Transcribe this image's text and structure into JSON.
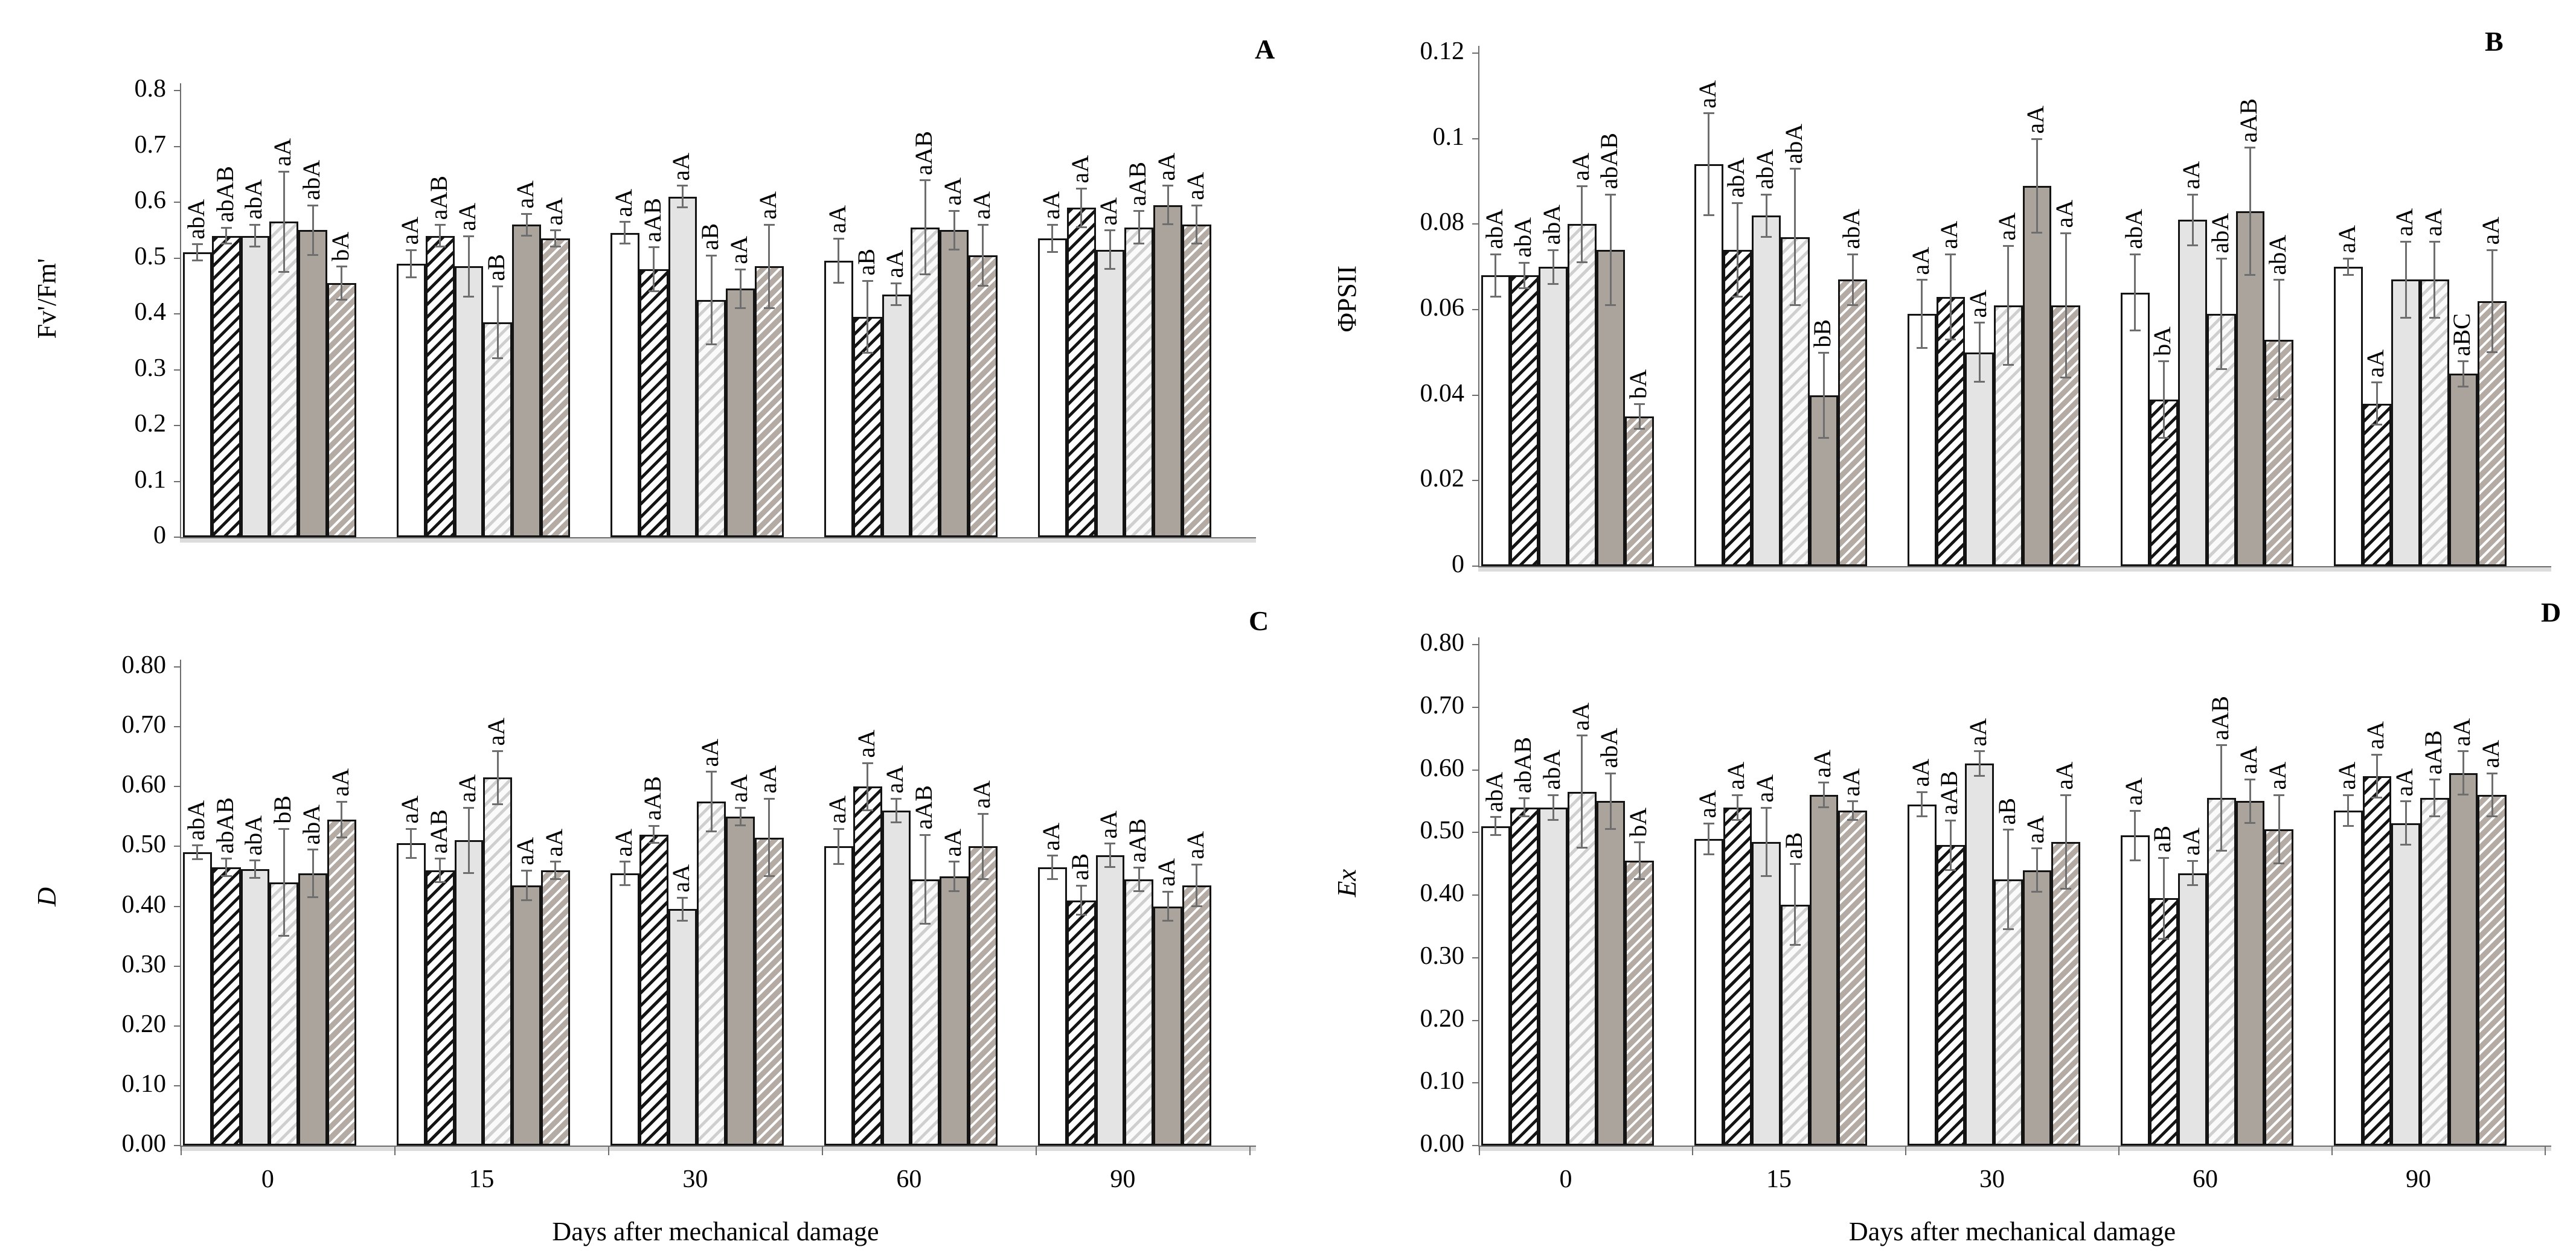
{
  "figure_title": "",
  "bar_styles": [
    {
      "name": "treatment-1",
      "fill": "solid-white",
      "color": "#ffffff"
    },
    {
      "name": "treatment-2",
      "fill": "black-diagonal-hatch",
      "color": "#141414"
    },
    {
      "name": "treatment-3",
      "fill": "solid-light-gray",
      "color": "#e4e4e4"
    },
    {
      "name": "treatment-4",
      "fill": "light-gray-diagonal-hatch",
      "color": "#cfcfcf"
    },
    {
      "name": "treatment-5",
      "fill": "solid-gray",
      "color": "#aba49c"
    },
    {
      "name": "treatment-6",
      "fill": "gray-white-diagonal-hatch",
      "color": "#b3aba4"
    }
  ],
  "chart_data": [
    {
      "type": "bar",
      "panel_label": "A",
      "ylabel": "Fv'/Fm'",
      "xlabel": "",
      "ymin": 0,
      "ymax": 0.8,
      "ytick_labels": [
        "0",
        "0.1",
        "0.2",
        "0.3",
        "0.4",
        "0.5",
        "0.6",
        "0.7",
        "0.8"
      ],
      "categories": [
        "0",
        "15",
        "30",
        "60",
        "90"
      ],
      "x_labels_visible": false,
      "grid": false,
      "legend": "none",
      "groups": [
        {
          "category": "0",
          "bars": [
            {
              "value": 0.51,
              "error": 0.015,
              "label": "abA"
            },
            {
              "value": 0.54,
              "error": 0.015,
              "label": "abAB"
            },
            {
              "value": 0.54,
              "error": 0.02,
              "label": "abA"
            },
            {
              "value": 0.565,
              "error": 0.09,
              "label": "aA"
            },
            {
              "value": 0.55,
              "error": 0.045,
              "label": "abA"
            },
            {
              "value": 0.455,
              "error": 0.03,
              "label": "bA"
            }
          ]
        },
        {
          "category": "15",
          "bars": [
            {
              "value": 0.49,
              "error": 0.025,
              "label": "aA"
            },
            {
              "value": 0.54,
              "error": 0.02,
              "label": "aAB"
            },
            {
              "value": 0.485,
              "error": 0.055,
              "label": "aA"
            },
            {
              "value": 0.385,
              "error": 0.065,
              "label": "aB"
            },
            {
              "value": 0.56,
              "error": 0.02,
              "label": "aA"
            },
            {
              "value": 0.535,
              "error": 0.015,
              "label": "aA"
            }
          ]
        },
        {
          "category": "30",
          "bars": [
            {
              "value": 0.545,
              "error": 0.02,
              "label": "aA"
            },
            {
              "value": 0.48,
              "error": 0.04,
              "label": "aAB"
            },
            {
              "value": 0.61,
              "error": 0.02,
              "label": "aA"
            },
            {
              "value": 0.425,
              "error": 0.08,
              "label": "aB"
            },
            {
              "value": 0.445,
              "error": 0.035,
              "label": "aA"
            },
            {
              "value": 0.485,
              "error": 0.075,
              "label": "aA"
            }
          ]
        },
        {
          "category": "60",
          "bars": [
            {
              "value": 0.495,
              "error": 0.04,
              "label": "aA"
            },
            {
              "value": 0.395,
              "error": 0.065,
              "label": "aB"
            },
            {
              "value": 0.435,
              "error": 0.02,
              "label": "aA"
            },
            {
              "value": 0.555,
              "error": 0.085,
              "label": "aAB"
            },
            {
              "value": 0.55,
              "error": 0.035,
              "label": "aA"
            },
            {
              "value": 0.505,
              "error": 0.055,
              "label": "aA"
            }
          ]
        },
        {
          "category": "90",
          "bars": [
            {
              "value": 0.535,
              "error": 0.025,
              "label": "aA"
            },
            {
              "value": 0.59,
              "error": 0.035,
              "label": "aA"
            },
            {
              "value": 0.515,
              "error": 0.035,
              "label": "aA"
            },
            {
              "value": 0.555,
              "error": 0.03,
              "label": "aAB"
            },
            {
              "value": 0.595,
              "error": 0.035,
              "label": "aA"
            },
            {
              "value": 0.56,
              "error": 0.035,
              "label": "aA"
            }
          ]
        }
      ]
    },
    {
      "type": "bar",
      "panel_label": "B",
      "ylabel": "ΦPSII",
      "xlabel": "",
      "ymin": 0,
      "ymax": 0.12,
      "ytick_labels": [
        "0",
        "0.02",
        "0.04",
        "0.06",
        "0.08",
        "0.1",
        "0.12"
      ],
      "categories": [
        "0",
        "15",
        "30",
        "60",
        "90"
      ],
      "x_labels_visible": false,
      "grid": false,
      "legend": "none",
      "groups": [
        {
          "category": "0",
          "bars": [
            {
              "value": 0.068,
              "error": 0.005,
              "label": "abA"
            },
            {
              "value": 0.068,
              "error": 0.003,
              "label": "abA"
            },
            {
              "value": 0.07,
              "error": 0.004,
              "label": "abA"
            },
            {
              "value": 0.08,
              "error": 0.009,
              "label": "aA"
            },
            {
              "value": 0.074,
              "error": 0.013,
              "label": "abAB"
            },
            {
              "value": 0.035,
              "error": 0.003,
              "label": "bA"
            }
          ]
        },
        {
          "category": "15",
          "bars": [
            {
              "value": 0.094,
              "error": 0.012,
              "label": "aA"
            },
            {
              "value": 0.074,
              "error": 0.011,
              "label": "abA"
            },
            {
              "value": 0.082,
              "error": 0.005,
              "label": "abA"
            },
            {
              "value": 0.077,
              "error": 0.016,
              "label": "abA"
            },
            {
              "value": 0.04,
              "error": 0.01,
              "label": "bB"
            },
            {
              "value": 0.067,
              "error": 0.006,
              "label": "abA"
            }
          ]
        },
        {
          "category": "30",
          "bars": [
            {
              "value": 0.059,
              "error": 0.008,
              "label": "aA"
            },
            {
              "value": 0.063,
              "error": 0.01,
              "label": "aA"
            },
            {
              "value": 0.05,
              "error": 0.007,
              "label": "aA"
            },
            {
              "value": 0.061,
              "error": 0.014,
              "label": "aA"
            },
            {
              "value": 0.089,
              "error": 0.011,
              "label": "aA"
            },
            {
              "value": 0.061,
              "error": 0.017,
              "label": "aA"
            }
          ]
        },
        {
          "category": "60",
          "bars": [
            {
              "value": 0.064,
              "error": 0.009,
              "label": "abA"
            },
            {
              "value": 0.039,
              "error": 0.009,
              "label": "bA"
            },
            {
              "value": 0.081,
              "error": 0.006,
              "label": "aA"
            },
            {
              "value": 0.059,
              "error": 0.013,
              "label": "abA"
            },
            {
              "value": 0.083,
              "error": 0.015,
              "label": "aAB"
            },
            {
              "value": 0.053,
              "error": 0.014,
              "label": "abA"
            }
          ]
        },
        {
          "category": "90",
          "bars": [
            {
              "value": 0.07,
              "error": 0.002,
              "label": "aA"
            },
            {
              "value": 0.038,
              "error": 0.005,
              "label": "aA"
            },
            {
              "value": 0.067,
              "error": 0.009,
              "label": "aA"
            },
            {
              "value": 0.067,
              "error": 0.009,
              "label": "aA"
            },
            {
              "value": 0.045,
              "error": 0.003,
              "label": "aBC"
            },
            {
              "value": 0.062,
              "error": 0.012,
              "label": "aA"
            }
          ]
        }
      ]
    },
    {
      "type": "bar",
      "panel_label": "C",
      "ylabel": "D",
      "xlabel": "Days after mechanical damage",
      "ymin": 0,
      "ymax": 0.8,
      "ytick_labels": [
        "0.00",
        "0.10",
        "0.20",
        "0.30",
        "0.40",
        "0.50",
        "0.60",
        "0.70",
        "0.80"
      ],
      "categories": [
        "0",
        "15",
        "30",
        "60",
        "90"
      ],
      "x_labels_visible": true,
      "grid": false,
      "legend": "none",
      "groups": [
        {
          "category": "0",
          "bars": [
            {
              "value": 0.49,
              "error": 0.012,
              "label": "abA"
            },
            {
              "value": 0.465,
              "error": 0.015,
              "label": "abAB"
            },
            {
              "value": 0.462,
              "error": 0.015,
              "label": "abA"
            },
            {
              "value": 0.44,
              "error": 0.09,
              "label": "bB"
            },
            {
              "value": 0.455,
              "error": 0.04,
              "label": "abA"
            },
            {
              "value": 0.545,
              "error": 0.03,
              "label": "aA"
            }
          ]
        },
        {
          "category": "15",
          "bars": [
            {
              "value": 0.505,
              "error": 0.025,
              "label": "aA"
            },
            {
              "value": 0.46,
              "error": 0.02,
              "label": "aAB"
            },
            {
              "value": 0.51,
              "error": 0.055,
              "label": "aA"
            },
            {
              "value": 0.615,
              "error": 0.045,
              "label": "aA"
            },
            {
              "value": 0.435,
              "error": 0.025,
              "label": "aA"
            },
            {
              "value": 0.46,
              "error": 0.015,
              "label": "aA"
            }
          ]
        },
        {
          "category": "30",
          "bars": [
            {
              "value": 0.455,
              "error": 0.02,
              "label": "aA"
            },
            {
              "value": 0.52,
              "error": 0.015,
              "label": "aAB"
            },
            {
              "value": 0.395,
              "error": 0.02,
              "label": "aA"
            },
            {
              "value": 0.575,
              "error": 0.05,
              "label": "aA"
            },
            {
              "value": 0.55,
              "error": 0.015,
              "label": "aA"
            },
            {
              "value": 0.515,
              "error": 0.065,
              "label": "aA"
            }
          ]
        },
        {
          "category": "60",
          "bars": [
            {
              "value": 0.5,
              "error": 0.03,
              "label": "aA"
            },
            {
              "value": 0.6,
              "error": 0.04,
              "label": "aA"
            },
            {
              "value": 0.56,
              "error": 0.02,
              "label": "aA"
            },
            {
              "value": 0.445,
              "error": 0.075,
              "label": "aAB"
            },
            {
              "value": 0.45,
              "error": 0.025,
              "label": "aA"
            },
            {
              "value": 0.5,
              "error": 0.055,
              "label": "aA"
            }
          ]
        },
        {
          "category": "90",
          "bars": [
            {
              "value": 0.465,
              "error": 0.02,
              "label": "aA"
            },
            {
              "value": 0.41,
              "error": 0.025,
              "label": "aB"
            },
            {
              "value": 0.485,
              "error": 0.02,
              "label": "aA"
            },
            {
              "value": 0.445,
              "error": 0.02,
              "label": "aAB"
            },
            {
              "value": 0.4,
              "error": 0.025,
              "label": "aA"
            },
            {
              "value": 0.435,
              "error": 0.035,
              "label": "aA"
            }
          ]
        }
      ]
    },
    {
      "type": "bar",
      "panel_label": "D",
      "ylabel": "Ex",
      "xlabel": "Days after mechanical damage",
      "ymin": 0,
      "ymax": 0.8,
      "ytick_labels": [
        "0.00",
        "0.10",
        "0.20",
        "0.30",
        "0.40",
        "0.50",
        "0.60",
        "0.70",
        "0.80"
      ],
      "categories": [
        "0",
        "15",
        "30",
        "60",
        "90"
      ],
      "x_labels_visible": true,
      "grid": false,
      "legend": "none",
      "groups": [
        {
          "category": "0",
          "bars": [
            {
              "value": 0.51,
              "error": 0.015,
              "label": "abA"
            },
            {
              "value": 0.54,
              "error": 0.015,
              "label": "abAB"
            },
            {
              "value": 0.54,
              "error": 0.02,
              "label": "abA"
            },
            {
              "value": 0.565,
              "error": 0.09,
              "label": "aA"
            },
            {
              "value": 0.55,
              "error": 0.045,
              "label": "abA"
            },
            {
              "value": 0.455,
              "error": 0.03,
              "label": "bA"
            }
          ]
        },
        {
          "category": "15",
          "bars": [
            {
              "value": 0.49,
              "error": 0.025,
              "label": "aA"
            },
            {
              "value": 0.54,
              "error": 0.02,
              "label": "aA"
            },
            {
              "value": 0.485,
              "error": 0.055,
              "label": "aA"
            },
            {
              "value": 0.385,
              "error": 0.065,
              "label": "aB"
            },
            {
              "value": 0.56,
              "error": 0.02,
              "label": "aA"
            },
            {
              "value": 0.535,
              "error": 0.015,
              "label": "aA"
            }
          ]
        },
        {
          "category": "30",
          "bars": [
            {
              "value": 0.545,
              "error": 0.02,
              "label": "aA"
            },
            {
              "value": 0.48,
              "error": 0.04,
              "label": "aAB"
            },
            {
              "value": 0.61,
              "error": 0.02,
              "label": "aA"
            },
            {
              "value": 0.425,
              "error": 0.08,
              "label": "aB"
            },
            {
              "value": 0.44,
              "error": 0.035,
              "label": "aA"
            },
            {
              "value": 0.485,
              "error": 0.075,
              "label": "aA"
            }
          ]
        },
        {
          "category": "60",
          "bars": [
            {
              "value": 0.495,
              "error": 0.04,
              "label": "aA"
            },
            {
              "value": 0.395,
              "error": 0.065,
              "label": "aB"
            },
            {
              "value": 0.435,
              "error": 0.02,
              "label": "aA"
            },
            {
              "value": 0.555,
              "error": 0.085,
              "label": "aAB"
            },
            {
              "value": 0.55,
              "error": 0.035,
              "label": "aA"
            },
            {
              "value": 0.505,
              "error": 0.055,
              "label": "aA"
            }
          ]
        },
        {
          "category": "90",
          "bars": [
            {
              "value": 0.535,
              "error": 0.025,
              "label": "aA"
            },
            {
              "value": 0.59,
              "error": 0.035,
              "label": "aA"
            },
            {
              "value": 0.515,
              "error": 0.035,
              "label": "aA"
            },
            {
              "value": 0.555,
              "error": 0.03,
              "label": "aAB"
            },
            {
              "value": 0.595,
              "error": 0.035,
              "label": "aA"
            },
            {
              "value": 0.56,
              "error": 0.035,
              "label": "aA"
            }
          ]
        }
      ]
    }
  ]
}
